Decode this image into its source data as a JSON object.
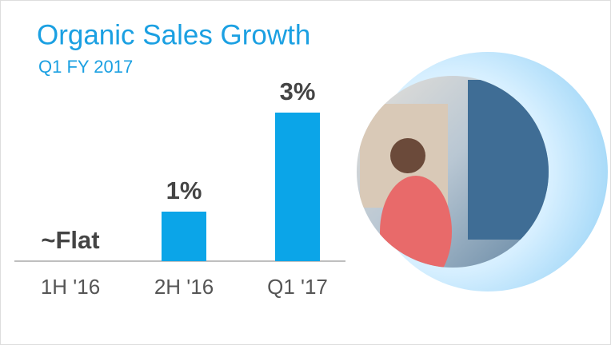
{
  "chart_data": {
    "type": "bar",
    "title": "Organic Sales Growth",
    "subtitle": "Q1 FY 2017",
    "categories": [
      "1H '16",
      "2H '16",
      "Q1 '17"
    ],
    "values": [
      0,
      1,
      3
    ],
    "value_labels": [
      "~Flat",
      "1%",
      "3%"
    ],
    "color": "#0ba5e8"
  }
}
